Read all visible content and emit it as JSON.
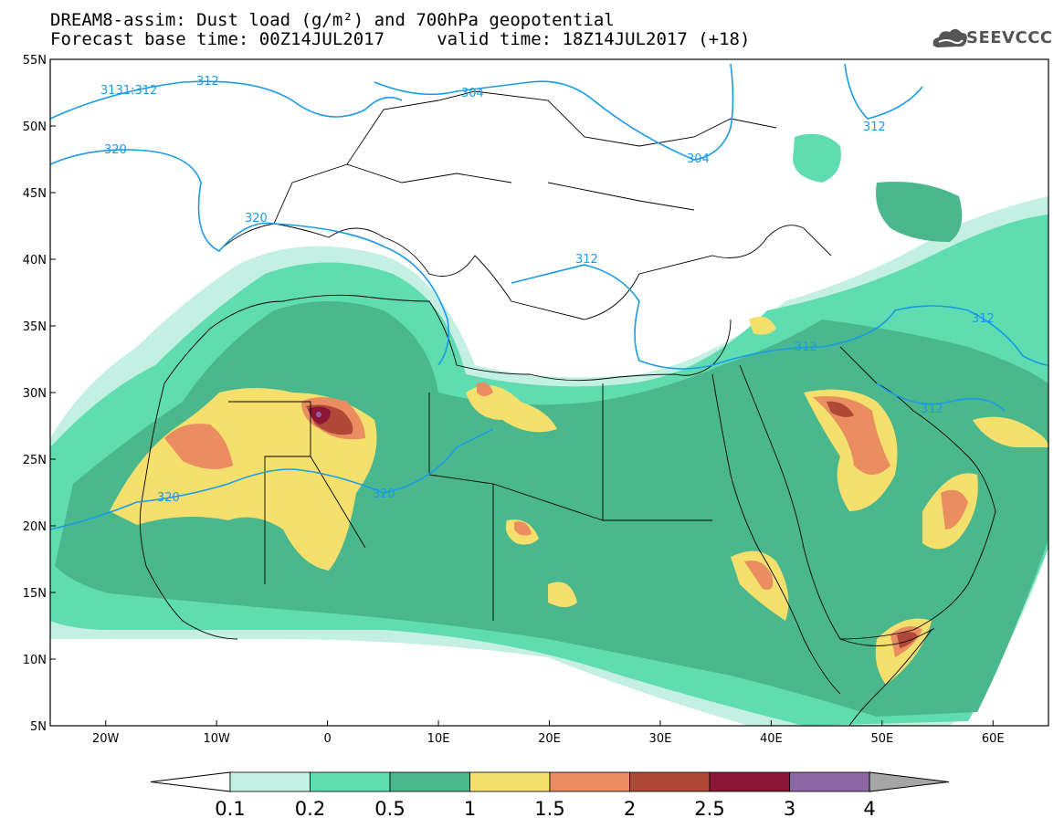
{
  "header": {
    "line1": "DREAM8-assim: Dust load (g/m²) and 700hPa geopotential",
    "line2": "Forecast base time: 00Z14JUL2017     valid time: 18Z14JUL2017 (+18)"
  },
  "logo": {
    "text": "SEEVCCC",
    "icon": "cloud-logo-icon"
  },
  "map": {
    "lon_range": [
      -25,
      65
    ],
    "lat_range": [
      5,
      55
    ],
    "lat_ticks": [
      "55N",
      "50N",
      "45N",
      "40N",
      "35N",
      "30N",
      "25N",
      "20N",
      "15N",
      "10N",
      "5N"
    ],
    "lon_ticks": [
      "20W",
      "10W",
      "0",
      "10E",
      "20E",
      "30E",
      "40E",
      "50E",
      "60E"
    ]
  },
  "colorbar": {
    "labels": [
      "0.1",
      "0.2",
      "0.5",
      "1",
      "1.5",
      "2",
      "2.5",
      "3",
      "4"
    ],
    "colors": [
      "#c4efe3",
      "#5fdcb0",
      "#4ab88c",
      "#f5e06e",
      "#ea8e62",
      "#b04838",
      "#8a1535",
      "#8c66a3"
    ],
    "over_color": "#a6a6a6",
    "under_color": "#ffffff"
  },
  "contours": {
    "labels": [
      "3131:312",
      "312",
      "304",
      "304",
      "312",
      "320",
      "320",
      "312",
      "312",
      "312",
      "312",
      "320",
      "320"
    ],
    "color": "#1a9be8"
  }
}
